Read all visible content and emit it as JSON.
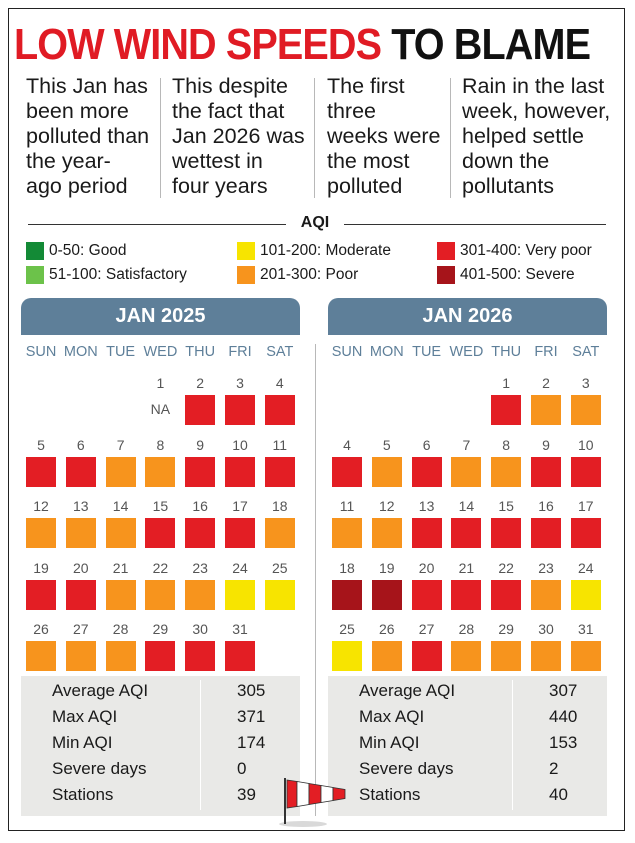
{
  "headline": {
    "red_part": "LOW WIND SPEEDS",
    "black_part": "TO BLAME"
  },
  "intro": [
    {
      "lines": [
        "This Jan has",
        "been more",
        "polluted than",
        "the year-",
        "ago period"
      ]
    },
    {
      "lines": [
        "This despite",
        "the fact that",
        "Jan 2026 was",
        "wettest in",
        "four years"
      ]
    },
    {
      "lines": [
        "The first",
        "three",
        "weeks were",
        "the most",
        "polluted"
      ]
    },
    {
      "lines": [
        "Rain in the last",
        "week, however,",
        "helped settle",
        "down the",
        "pollutants"
      ]
    }
  ],
  "legend": {
    "title": "AQI",
    "items": [
      {
        "label": "0-50: Good",
        "color": "#138a36"
      },
      {
        "label": "51-100: Satisfactory",
        "color": "#6cc24a"
      },
      {
        "label": "101-200: Moderate",
        "color": "#f7e400"
      },
      {
        "label": "201-300: Poor",
        "color": "#f7941d"
      },
      {
        "label": "301-400: Very poor",
        "color": "#e31e24"
      },
      {
        "label": "401-500: Severe",
        "color": "#a6141a"
      }
    ]
  },
  "chart_data": {
    "type": "heatmap",
    "title": "AQI",
    "weekdays": [
      "SUN",
      "MON",
      "TUE",
      "WED",
      "THU",
      "FRI",
      "SAT"
    ],
    "category_colors": {
      "moderate": "#f7e400",
      "poor": "#f7941d",
      "very_poor": "#e31e24",
      "severe": "#a6141a"
    },
    "calendars": [
      {
        "title": "JAN 2025",
        "start_weekday": 3,
        "na_label": "NA",
        "days": [
          "na",
          "very_poor",
          "very_poor",
          "very_poor",
          "very_poor",
          "very_poor",
          "poor",
          "poor",
          "very_poor",
          "very_poor",
          "very_poor",
          "poor",
          "poor",
          "poor",
          "very_poor",
          "very_poor",
          "very_poor",
          "poor",
          "very_poor",
          "very_poor",
          "poor",
          "poor",
          "poor",
          "moderate",
          "moderate",
          "poor",
          "poor",
          "poor",
          "very_poor",
          "very_poor",
          "very_poor"
        ],
        "stats": [
          {
            "label": "Average AQI",
            "value": "305"
          },
          {
            "label": "Max AQI",
            "value": "371"
          },
          {
            "label": "Min AQI",
            "value": "174"
          },
          {
            "label": "Severe days",
            "value": "0"
          },
          {
            "label": "Stations",
            "value": "39"
          }
        ]
      },
      {
        "title": "JAN 2026",
        "start_weekday": 4,
        "days": [
          "very_poor",
          "poor",
          "poor",
          "very_poor",
          "poor",
          "very_poor",
          "poor",
          "poor",
          "very_poor",
          "very_poor",
          "poor",
          "poor",
          "very_poor",
          "very_poor",
          "very_poor",
          "very_poor",
          "very_poor",
          "severe",
          "severe",
          "very_poor",
          "very_poor",
          "very_poor",
          "poor",
          "moderate",
          "moderate",
          "poor",
          "very_poor",
          "poor",
          "poor",
          "poor",
          "poor"
        ],
        "stats": [
          {
            "label": "Average AQI",
            "value": "307"
          },
          {
            "label": "Max AQI",
            "value": "440"
          },
          {
            "label": "Min AQI",
            "value": "153"
          },
          {
            "label": "Severe days",
            "value": "2"
          },
          {
            "label": "Stations",
            "value": "40"
          }
        ]
      }
    ]
  }
}
